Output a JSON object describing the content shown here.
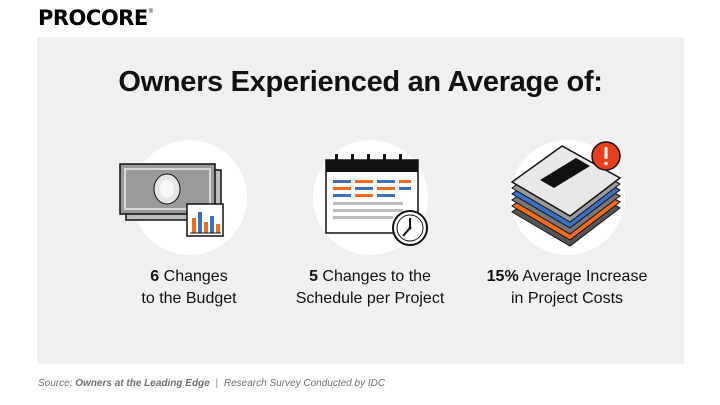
{
  "brand": {
    "logo_text": "PROCORE",
    "reg_mark": "®"
  },
  "headline": "Owners Experienced an Average of:",
  "stats": [
    {
      "value": "6",
      "line1_rest": " Changes",
      "line2": "to the Budget",
      "icon": "money-chart-icon"
    },
    {
      "value": "5",
      "line1_rest": " Changes to the",
      "line2": "Schedule per Project",
      "icon": "calendar-clock-icon"
    },
    {
      "value": "15%",
      "line1_rest": " Average Increase",
      "line2": "in Project Costs",
      "icon": "document-stack-alert-icon"
    }
  ],
  "source": {
    "label": "Source:",
    "title": "Owners at the Leading Edge",
    "separator": "|",
    "detail": "Research Survey Conducted by IDC"
  },
  "colors": {
    "accent_orange": "#f26b1d",
    "accent_blue": "#3a6fc4",
    "panel_bg": "#f0f0f0",
    "alert_red": "#e8401c"
  }
}
